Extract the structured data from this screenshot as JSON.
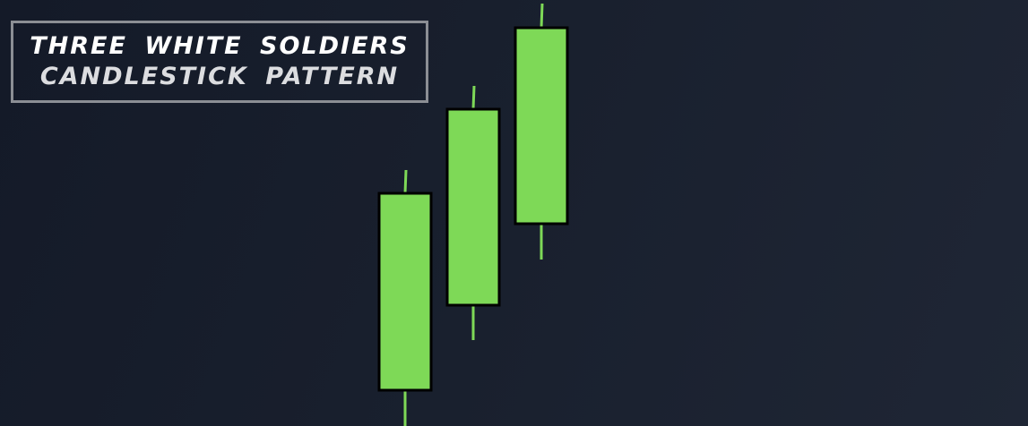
{
  "title": {
    "line1": "THREE WHITE SOLDIERS",
    "line2": "CANDLESTICK PATTERN"
  },
  "colors": {
    "background": "#1a2030",
    "candle_body": "#7ed957",
    "candle_border": "#000000",
    "wick": "#7ed957",
    "title_border": "#8b8e94",
    "title_text": "#ffffff"
  },
  "chart_data": {
    "type": "candlestick",
    "title": "THREE WHITE SOLDIERS CANDLESTICK PATTERN",
    "xlabel": "",
    "ylabel": "",
    "grid": false,
    "candles": [
      {
        "index": 1,
        "open": 40,
        "close": 260,
        "high": 286,
        "low": 0
      },
      {
        "index": 2,
        "open": 135,
        "close": 354,
        "high": 380,
        "low": 96
      },
      {
        "index": 3,
        "open": 226,
        "close": 445,
        "high": 472,
        "low": 186
      }
    ],
    "ylim": [
      0,
      476
    ]
  }
}
